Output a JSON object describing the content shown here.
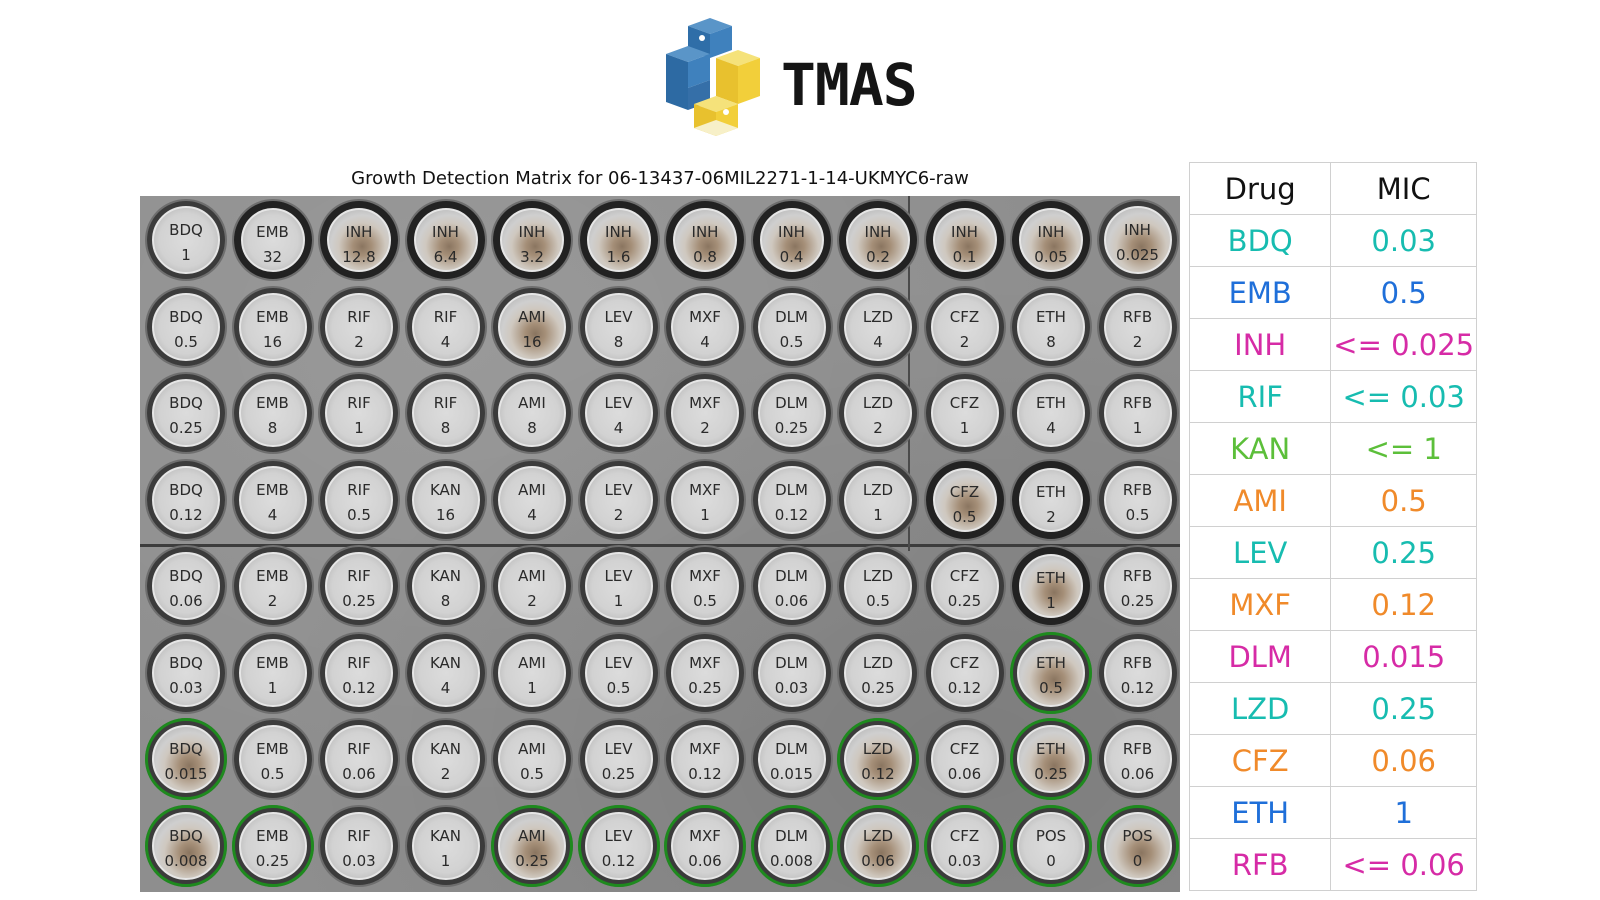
{
  "header": {
    "logo_text": "TMAS",
    "logo_icon": "tmas-logo-icon"
  },
  "plate": {
    "title": "Growth Detection Matrix for 06-13437-06MIL2271-1-14-UKMYC6-raw",
    "rows": [
      [
        {
          "d": "BDQ",
          "c": "1"
        },
        {
          "d": "EMB",
          "c": "32"
        },
        {
          "d": "INH",
          "c": "12.8"
        },
        {
          "d": "INH",
          "c": "6.4"
        },
        {
          "d": "INH",
          "c": "3.2"
        },
        {
          "d": "INH",
          "c": "1.6"
        },
        {
          "d": "INH",
          "c": "0.8"
        },
        {
          "d": "INH",
          "c": "0.4"
        },
        {
          "d": "INH",
          "c": "0.2"
        },
        {
          "d": "INH",
          "c": "0.1"
        },
        {
          "d": "INH",
          "c": "0.05"
        },
        {
          "d": "INH",
          "c": "0.025"
        }
      ],
      [
        {
          "d": "BDQ",
          "c": "0.5"
        },
        {
          "d": "EMB",
          "c": "16"
        },
        {
          "d": "RIF",
          "c": "2"
        },
        {
          "d": "RIF",
          "c": "4"
        },
        {
          "d": "AMI",
          "c": "16"
        },
        {
          "d": "LEV",
          "c": "8"
        },
        {
          "d": "MXF",
          "c": "4"
        },
        {
          "d": "DLM",
          "c": "0.5"
        },
        {
          "d": "LZD",
          "c": "4"
        },
        {
          "d": "CFZ",
          "c": "2"
        },
        {
          "d": "ETH",
          "c": "8"
        },
        {
          "d": "RFB",
          "c": "2"
        }
      ],
      [
        {
          "d": "BDQ",
          "c": "0.25"
        },
        {
          "d": "EMB",
          "c": "8"
        },
        {
          "d": "RIF",
          "c": "1"
        },
        {
          "d": "RIF",
          "c": "8"
        },
        {
          "d": "AMI",
          "c": "8"
        },
        {
          "d": "LEV",
          "c": "4"
        },
        {
          "d": "MXF",
          "c": "2"
        },
        {
          "d": "DLM",
          "c": "0.25"
        },
        {
          "d": "LZD",
          "c": "2"
        },
        {
          "d": "CFZ",
          "c": "1"
        },
        {
          "d": "ETH",
          "c": "4"
        },
        {
          "d": "RFB",
          "c": "1"
        }
      ],
      [
        {
          "d": "BDQ",
          "c": "0.12"
        },
        {
          "d": "EMB",
          "c": "4"
        },
        {
          "d": "RIF",
          "c": "0.5"
        },
        {
          "d": "KAN",
          "c": "16"
        },
        {
          "d": "AMI",
          "c": "4"
        },
        {
          "d": "LEV",
          "c": "2"
        },
        {
          "d": "MXF",
          "c": "1"
        },
        {
          "d": "DLM",
          "c": "0.12"
        },
        {
          "d": "LZD",
          "c": "1"
        },
        {
          "d": "CFZ",
          "c": "0.5"
        },
        {
          "d": "ETH",
          "c": "2"
        },
        {
          "d": "RFB",
          "c": "0.5"
        }
      ],
      [
        {
          "d": "BDQ",
          "c": "0.06"
        },
        {
          "d": "EMB",
          "c": "2"
        },
        {
          "d": "RIF",
          "c": "0.25"
        },
        {
          "d": "KAN",
          "c": "8"
        },
        {
          "d": "AMI",
          "c": "2"
        },
        {
          "d": "LEV",
          "c": "1"
        },
        {
          "d": "MXF",
          "c": "0.5"
        },
        {
          "d": "DLM",
          "c": "0.06"
        },
        {
          "d": "LZD",
          "c": "0.5"
        },
        {
          "d": "CFZ",
          "c": "0.25"
        },
        {
          "d": "ETH",
          "c": "1"
        },
        {
          "d": "RFB",
          "c": "0.25"
        }
      ],
      [
        {
          "d": "BDQ",
          "c": "0.03"
        },
        {
          "d": "EMB",
          "c": "1"
        },
        {
          "d": "RIF",
          "c": "0.12"
        },
        {
          "d": "KAN",
          "c": "4"
        },
        {
          "d": "AMI",
          "c": "1"
        },
        {
          "d": "LEV",
          "c": "0.5"
        },
        {
          "d": "MXF",
          "c": "0.25"
        },
        {
          "d": "DLM",
          "c": "0.03"
        },
        {
          "d": "LZD",
          "c": "0.25"
        },
        {
          "d": "CFZ",
          "c": "0.12"
        },
        {
          "d": "ETH",
          "c": "0.5"
        },
        {
          "d": "RFB",
          "c": "0.12"
        }
      ],
      [
        {
          "d": "BDQ",
          "c": "0.015"
        },
        {
          "d": "EMB",
          "c": "0.5"
        },
        {
          "d": "RIF",
          "c": "0.06"
        },
        {
          "d": "KAN",
          "c": "2"
        },
        {
          "d": "AMI",
          "c": "0.5"
        },
        {
          "d": "LEV",
          "c": "0.25"
        },
        {
          "d": "MXF",
          "c": "0.12"
        },
        {
          "d": "DLM",
          "c": "0.015"
        },
        {
          "d": "LZD",
          "c": "0.12"
        },
        {
          "d": "CFZ",
          "c": "0.06"
        },
        {
          "d": "ETH",
          "c": "0.25"
        },
        {
          "d": "RFB",
          "c": "0.06"
        }
      ],
      [
        {
          "d": "BDQ",
          "c": "0.008"
        },
        {
          "d": "EMB",
          "c": "0.25"
        },
        {
          "d": "RIF",
          "c": "0.03"
        },
        {
          "d": "KAN",
          "c": "1"
        },
        {
          "d": "AMI",
          "c": "0.25"
        },
        {
          "d": "LEV",
          "c": "0.12"
        },
        {
          "d": "MXF",
          "c": "0.06"
        },
        {
          "d": "DLM",
          "c": "0.008"
        },
        {
          "d": "LZD",
          "c": "0.06"
        },
        {
          "d": "CFZ",
          "c": "0.03"
        },
        {
          "d": "POS",
          "c": "0"
        },
        {
          "d": "POS",
          "c": "0"
        }
      ]
    ],
    "growth_detected": [
      [
        5,
        10
      ],
      [
        6,
        0
      ],
      [
        6,
        8
      ],
      [
        6,
        10
      ],
      [
        7,
        0
      ],
      [
        7,
        1
      ],
      [
        7,
        4
      ],
      [
        7,
        5
      ],
      [
        7,
        6
      ],
      [
        7,
        7
      ],
      [
        7,
        8
      ],
      [
        7,
        9
      ],
      [
        7,
        10
      ],
      [
        7,
        11
      ]
    ],
    "visible_growth": [
      [
        0,
        2
      ],
      [
        0,
        3
      ],
      [
        0,
        4
      ],
      [
        0,
        5
      ],
      [
        0,
        6
      ],
      [
        0,
        7
      ],
      [
        0,
        8
      ],
      [
        0,
        9
      ],
      [
        0,
        10
      ],
      [
        0,
        11
      ],
      [
        1,
        4
      ],
      [
        3,
        9
      ],
      [
        4,
        10
      ],
      [
        5,
        10
      ],
      [
        6,
        0
      ],
      [
        6,
        8
      ],
      [
        6,
        10
      ],
      [
        7,
        0
      ],
      [
        7,
        4
      ],
      [
        7,
        8
      ],
      [
        7,
        11
      ]
    ],
    "dark_wells": [
      [
        0,
        1
      ],
      [
        0,
        2
      ],
      [
        0,
        3
      ],
      [
        0,
        4
      ],
      [
        0,
        5
      ],
      [
        0,
        6
      ],
      [
        0,
        7
      ],
      [
        0,
        8
      ],
      [
        0,
        9
      ],
      [
        0,
        10
      ],
      [
        3,
        9
      ],
      [
        3,
        10
      ],
      [
        4,
        10
      ]
    ],
    "ring_color": "#1e8a1e"
  },
  "mic_table": {
    "headers": [
      "Drug",
      "MIC"
    ],
    "rows": [
      {
        "drug": "BDQ",
        "mic": "0.03",
        "color": "#17bcb0"
      },
      {
        "drug": "EMB",
        "mic": "0.5",
        "color": "#1f6fd9"
      },
      {
        "drug": "INH",
        "mic": "<= 0.025",
        "color": "#d62ba6"
      },
      {
        "drug": "RIF",
        "mic": "<= 0.03",
        "color": "#17bcb0"
      },
      {
        "drug": "KAN",
        "mic": "<= 1",
        "color": "#5cbf3a"
      },
      {
        "drug": "AMI",
        "mic": "0.5",
        "color": "#f08a2a"
      },
      {
        "drug": "LEV",
        "mic": "0.25",
        "color": "#17bcb0"
      },
      {
        "drug": "MXF",
        "mic": "0.12",
        "color": "#f08a2a"
      },
      {
        "drug": "DLM",
        "mic": "0.015",
        "color": "#d62ba6"
      },
      {
        "drug": "LZD",
        "mic": "0.25",
        "color": "#17bcb0"
      },
      {
        "drug": "CFZ",
        "mic": "0.06",
        "color": "#f08a2a"
      },
      {
        "drug": "ETH",
        "mic": "1",
        "color": "#1f6fd9"
      },
      {
        "drug": "RFB",
        "mic": "<= 0.06",
        "color": "#d62ba6"
      }
    ]
  }
}
